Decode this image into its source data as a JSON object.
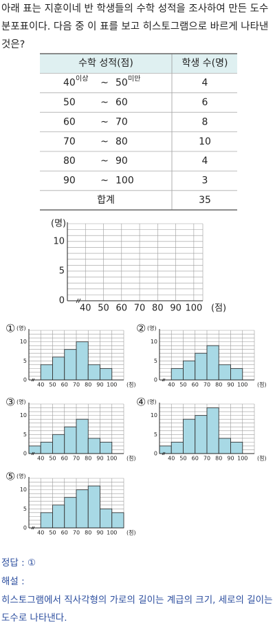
{
  "question": "아래 표는 지훈이네 반 학생들의 수학 성적을 조사하여 만든 도수분포표이다. 다음 중 이 표를 보고 히스토그램으로 바르게 나타낸 것은?",
  "table": {
    "header": [
      "수학 성적(점)",
      "학생 수(명)"
    ],
    "range_separator": "~",
    "range_notes": [
      "이상",
      "미만"
    ],
    "rows": [
      [
        40,
        50,
        4
      ],
      [
        50,
        60,
        6
      ],
      [
        60,
        70,
        8
      ],
      [
        70,
        80,
        10
      ],
      [
        80,
        90,
        4
      ],
      [
        90,
        100,
        3
      ]
    ],
    "total": [
      "합계",
      35
    ]
  },
  "chart_data": [
    {
      "type": "blank",
      "ylabel": "(명)",
      "xlabel": "(점)",
      "xlim": [
        30,
        105
      ],
      "ylim": [
        0,
        13
      ],
      "grid_step": 1,
      "yticks": [
        0,
        5,
        10
      ],
      "xticks": [
        40,
        50,
        60,
        70,
        80,
        90,
        100
      ]
    },
    {
      "type": "histogram",
      "label": "①",
      "ylabel": "(명)",
      "xlabel": "(점)",
      "xlim": [
        30,
        110
      ],
      "ylim": [
        0,
        13
      ],
      "grid_step": 1,
      "yticks": [
        0,
        5,
        10
      ],
      "xticks": [
        40,
        50,
        60,
        70,
        80,
        90,
        100
      ],
      "color": "#a8d9e5",
      "bins": [
        40,
        50,
        60,
        70,
        80,
        90,
        100
      ],
      "values": [
        4,
        6,
        8,
        10,
        4,
        3
      ]
    },
    {
      "type": "histogram",
      "label": "②",
      "ylabel": "(명)",
      "xlabel": "(점)",
      "xlim": [
        30,
        110
      ],
      "ylim": [
        0,
        13
      ],
      "grid_step": 1,
      "yticks": [
        0,
        5,
        10
      ],
      "xticks": [
        40,
        50,
        60,
        70,
        80,
        90,
        100
      ],
      "color": "#a8d9e5",
      "bins": [
        40,
        50,
        60,
        70,
        80,
        90,
        100
      ],
      "values": [
        3,
        5,
        7,
        9,
        4,
        3
      ]
    },
    {
      "type": "histogram",
      "label": "③",
      "ylabel": "(명)",
      "xlabel": "(점)",
      "xlim": [
        30,
        110
      ],
      "ylim": [
        0,
        13
      ],
      "grid_step": 1,
      "yticks": [
        0,
        5,
        10
      ],
      "xticks": [
        40,
        50,
        60,
        70,
        80,
        90,
        100
      ],
      "color": "#a8d9e5",
      "bins": [
        30,
        40,
        50,
        60,
        70,
        80,
        90,
        100
      ],
      "values": [
        2,
        3,
        5,
        7,
        9,
        4,
        3
      ]
    },
    {
      "type": "histogram",
      "label": "④",
      "ylabel": "(명)",
      "xlabel": "(점)",
      "xlim": [
        30,
        110
      ],
      "ylim": [
        0,
        13
      ],
      "grid_step": 1,
      "yticks": [
        0,
        5,
        10
      ],
      "xticks": [
        40,
        50,
        60,
        70,
        80,
        90,
        100
      ],
      "color": "#a8d9e5",
      "bins": [
        30,
        40,
        50,
        60,
        70,
        80,
        90,
        100
      ],
      "values": [
        2,
        3,
        9,
        10,
        12,
        4,
        3
      ]
    },
    {
      "type": "histogram",
      "label": "⑤",
      "ylabel": "(명)",
      "xlabel": "(점)",
      "xlim": [
        30,
        110
      ],
      "ylim": [
        0,
        13
      ],
      "grid_step": 1,
      "yticks": [
        0,
        5,
        10
      ],
      "xticks": [
        40,
        50,
        60,
        70,
        80,
        90,
        100
      ],
      "color": "#a8d9e5",
      "bins": [
        40,
        50,
        60,
        70,
        80,
        90,
        100,
        110
      ],
      "values": [
        4,
        6,
        8,
        10,
        11,
        5,
        4
      ]
    }
  ],
  "answer_label": "정답 :",
  "answer": "①",
  "explanation_label": "해설 :",
  "explanation": "히스토그램에서 직사각형의 가로의 길이는 계급의 크기, 세로의 길이는 도수로 나타낸다."
}
